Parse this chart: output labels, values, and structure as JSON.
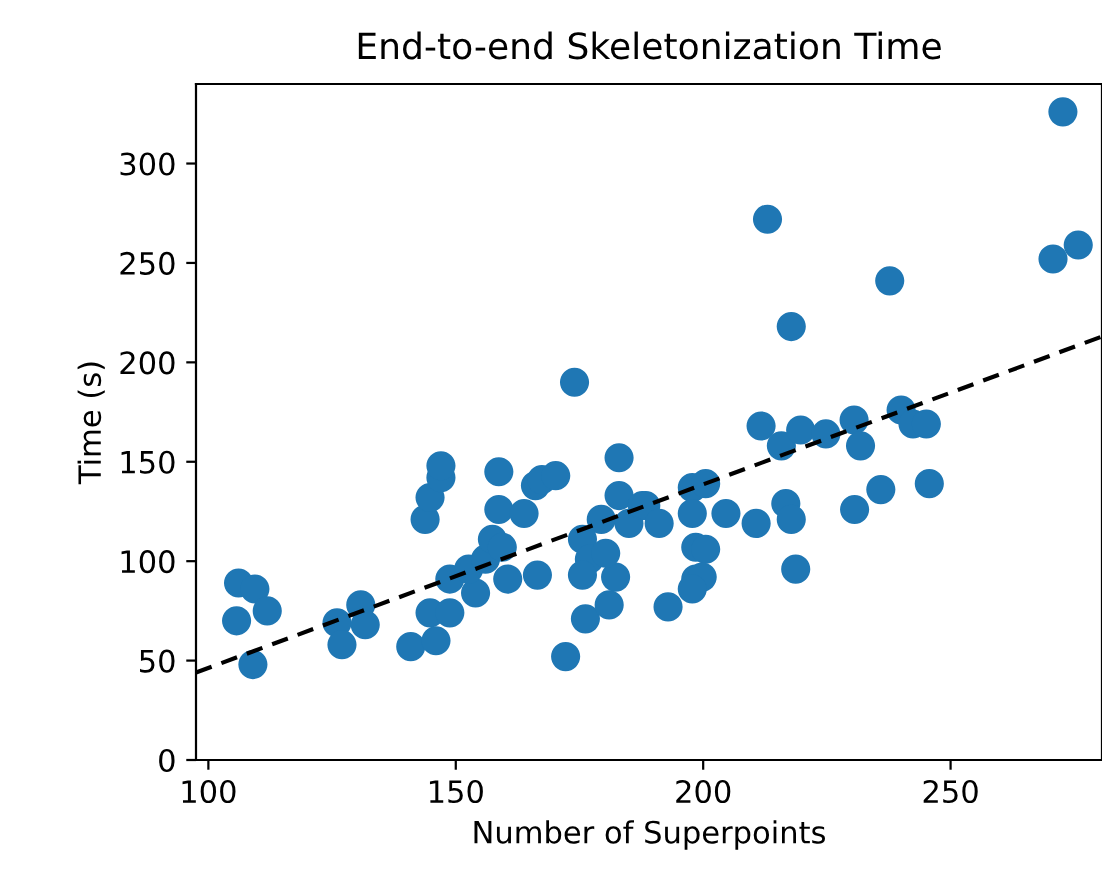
{
  "chart_data": {
    "type": "scatter",
    "title": "End-to-end Skeletonization Time",
    "xlabel": "Number of Superpoints",
    "ylabel": "Time (s)",
    "xlim": [
      97.5,
      280.6
    ],
    "ylim": [
      0,
      340
    ],
    "xticks": [
      100,
      150,
      200,
      250
    ],
    "yticks": [
      0,
      50,
      100,
      150,
      200,
      250,
      300
    ],
    "grid": false,
    "marker": "circle",
    "series": [
      {
        "color": "#1f77b4",
        "x": [
          106.1,
          109.4,
          105.7,
          111.9,
          109,
          126,
          127,
          130.8,
          131.7,
          140.9,
          143.8,
          144.8,
          147,
          147,
          144.8,
          146,
          148.8,
          148.8,
          154,
          152.6,
          156,
          157.4,
          159.4,
          160.5,
          158.7,
          158.7,
          163.8,
          166.5,
          166.1,
          167.4,
          170.2,
          174,
          172.2,
          183,
          183,
          179.4,
          175.6,
          177,
          182.3,
          175.6,
          176.2,
          181,
          185,
          187.7,
          180.3,
          188.4,
          191.1,
          192.9,
          197.8,
          200.5,
          197.8,
          204.6,
          210.7,
          198.5,
          200.5,
          198.5,
          199.8,
          197.8,
          213,
          211.7,
          215.8,
          219.7,
          224.8,
          216.7,
          217.8,
          217.8,
          218.7,
          230.5,
          231.8,
          230.6,
          235.9,
          237.7,
          240,
          242.4,
          245.1,
          245.7,
          270.7,
          275.8,
          272.7
        ],
        "values": [
          89,
          86,
          70,
          75,
          48,
          69,
          58,
          78,
          68,
          57,
          121,
          132,
          142,
          148,
          74,
          60,
          74,
          91,
          84,
          96,
          101,
          111,
          107,
          91,
          145,
          126,
          124,
          93,
          138,
          141,
          143,
          190,
          52,
          152,
          133,
          121,
          111,
          101,
          92,
          93,
          71,
          78,
          119,
          128,
          104,
          128,
          119,
          77,
          137,
          139,
          124,
          124,
          119,
          107,
          106,
          91,
          92,
          86,
          272,
          168,
          158,
          166,
          164,
          129,
          121,
          218,
          96,
          171,
          158,
          126,
          136,
          241,
          176,
          169,
          169,
          139,
          252,
          259,
          326
        ]
      },
      {
        "type": "line",
        "color": "#000000",
        "line_style": "dashed",
        "marker": "none",
        "x": [
          97.5,
          280.6
        ],
        "values": [
          44,
          213
        ]
      }
    ]
  }
}
